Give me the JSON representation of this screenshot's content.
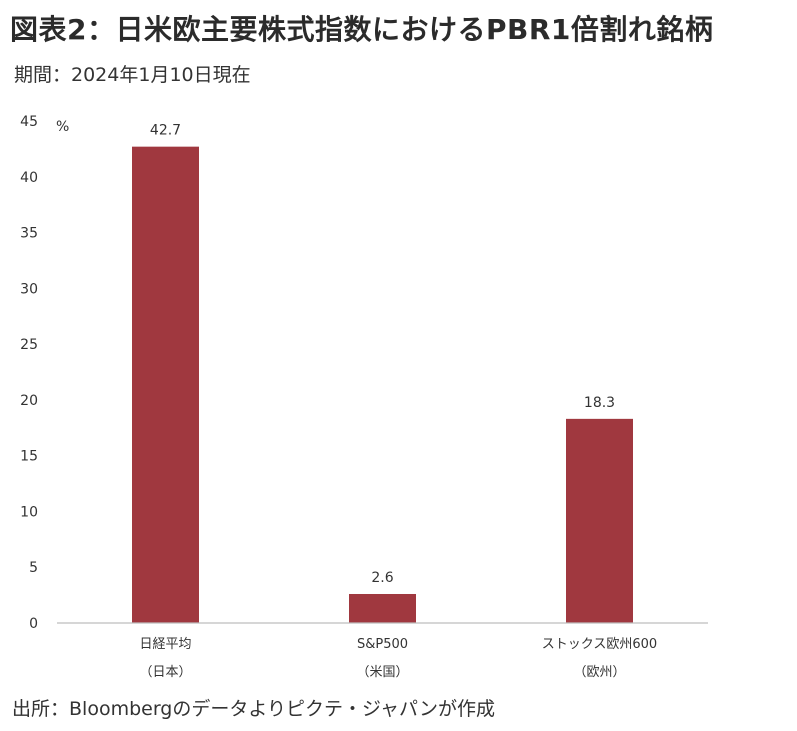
{
  "title": "図表2：日米欧主要株式指数におけるPBR1倍割れ銘柄",
  "period": "期間：2024年1月10日現在",
  "source": "出所：Bloombergのデータよりピクテ・ジャパンが作成",
  "colors": {
    "bar": "#a0383f",
    "axis": "#bdbdbd",
    "text": "#333333"
  },
  "chart_data": {
    "type": "bar",
    "unit_label": "%",
    "categories": [
      {
        "line1": "日経平均",
        "line2": "（日本）"
      },
      {
        "line1": "S&P500",
        "line2": "（米国）"
      },
      {
        "line1": "ストックス欧州600",
        "line2": "（欧州）"
      }
    ],
    "values": [
      42.7,
      2.6,
      18.3
    ],
    "data_labels": [
      "42.7",
      "2.6",
      "18.3"
    ],
    "ylim": [
      0,
      45
    ],
    "yticks": [
      "0",
      "5",
      "10",
      "15",
      "20",
      "25",
      "30",
      "35",
      "40",
      "45"
    ],
    "grid": false
  }
}
